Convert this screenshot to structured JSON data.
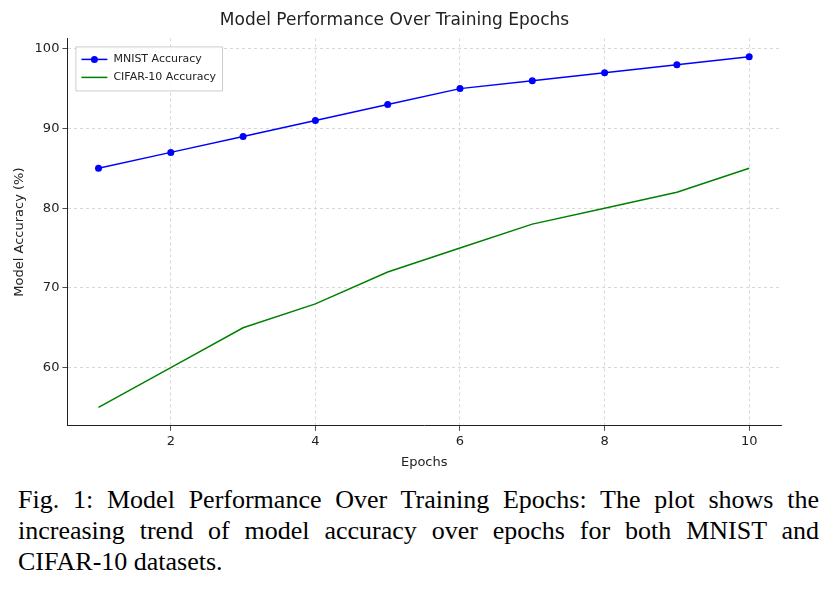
{
  "chart_data": {
    "type": "line",
    "title": "Model Performance Over Training Epochs",
    "x_label": "Epochs",
    "y_label": "Model Accuracy (%)",
    "caption": "Fig. 1: Model Performance Over Training Epochs: The plot shows the increasing trend of model accuracy over epochs for both MNIST and CIFAR-10 datasets.",
    "x": [
      1,
      2,
      3,
      4,
      5,
      6,
      7,
      8,
      9,
      10
    ],
    "series": [
      {
        "name": "MNIST Accuracy",
        "color": "#0000ff",
        "marker": "o",
        "line_style": "solid",
        "values": [
          85,
          87,
          89,
          91,
          93,
          95,
          96,
          97,
          98,
          99
        ]
      },
      {
        "name": "CIFAR-10 Accuracy",
        "color": "#008000",
        "line_style": "solid",
        "values": [
          55,
          60,
          65,
          68,
          72,
          75,
          78,
          80,
          82,
          85
        ]
      }
    ],
    "xlim": [
      0.57,
      10.44
    ],
    "xticks": [
      2,
      4,
      6,
      8,
      10
    ],
    "ylim": [
      52.7,
      101.3
    ],
    "yticks": [
      60,
      70,
      80,
      90,
      100
    ],
    "grid": true,
    "legend": "upper left"
  }
}
